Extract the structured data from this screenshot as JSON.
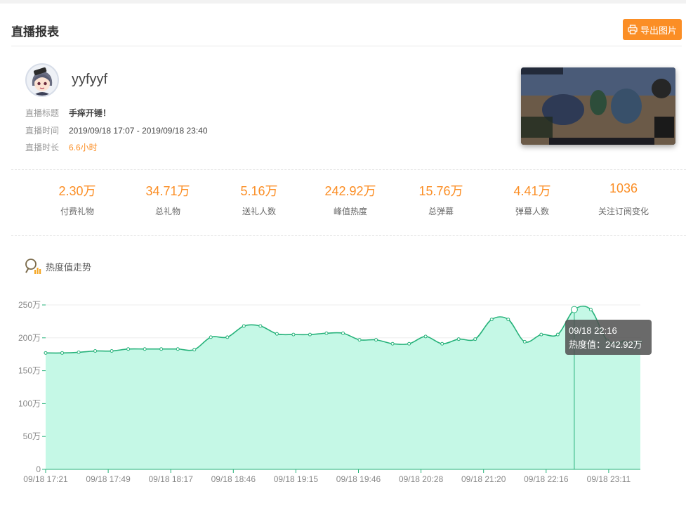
{
  "header": {
    "title": "直播报表",
    "export_label": "导出图片",
    "export_icon": "printer-icon"
  },
  "streamer": {
    "name": "yyfyyf",
    "avatar_icon": "anime-avatar"
  },
  "info": [
    {
      "key": "直播标题",
      "value": "手痒开锤！",
      "style": "bold"
    },
    {
      "key": "直播时间",
      "value": "2019/09/18 17:07 - 2019/09/18 23:40",
      "style": "normal"
    },
    {
      "key": "直播时长",
      "value": "6.6小时",
      "style": "orange"
    }
  ],
  "stats": [
    {
      "value": "2.30万",
      "label": "付费礼物"
    },
    {
      "value": "34.71万",
      "label": "总礼物"
    },
    {
      "value": "5.16万",
      "label": "送礼人数"
    },
    {
      "value": "242.92万",
      "label": "峰值热度"
    },
    {
      "value": "15.76万",
      "label": "总弹幕"
    },
    {
      "value": "4.41万",
      "label": "弹幕人数"
    },
    {
      "value": "1036",
      "label": "关注订阅变化"
    }
  ],
  "trend": {
    "label": "热度值走势",
    "icon": "magnifier-chart-icon"
  },
  "colors": {
    "accent": "#fb8e25",
    "line": "#26b27a",
    "area": "#c5f8e6"
  },
  "chart_data": {
    "type": "area",
    "title": "",
    "xlabel": "",
    "ylabel": "",
    "ylim": [
      0,
      250
    ],
    "y_ticks": [
      "0",
      "50万",
      "100万",
      "150万",
      "200万",
      "250万"
    ],
    "y_tick_values": [
      0,
      50,
      100,
      150,
      200,
      250
    ],
    "x_ticks": [
      "09/18 17:21",
      "09/18 17:49",
      "09/18 18:17",
      "09/18 18:46",
      "09/18 19:15",
      "09/18 19:46",
      "09/18 20:28",
      "09/18 21:20",
      "09/18 22:16",
      "09/18 23:11"
    ],
    "series": [
      {
        "unit": "万",
        "values": [
          177,
          177,
          178,
          180,
          180,
          183,
          183,
          183,
          183,
          182,
          201,
          201,
          218,
          218,
          206,
          205,
          205,
          207,
          207,
          197,
          197,
          191,
          191,
          202,
          191,
          198,
          198,
          228,
          228,
          194,
          205,
          205,
          242.92,
          242.92,
          196,
          194,
          194
        ]
      }
    ],
    "grid": true,
    "legend": "none",
    "tooltip": {
      "time": "09/18 22:16",
      "text": "热度值：242.92万",
      "point_index": 32
    }
  }
}
